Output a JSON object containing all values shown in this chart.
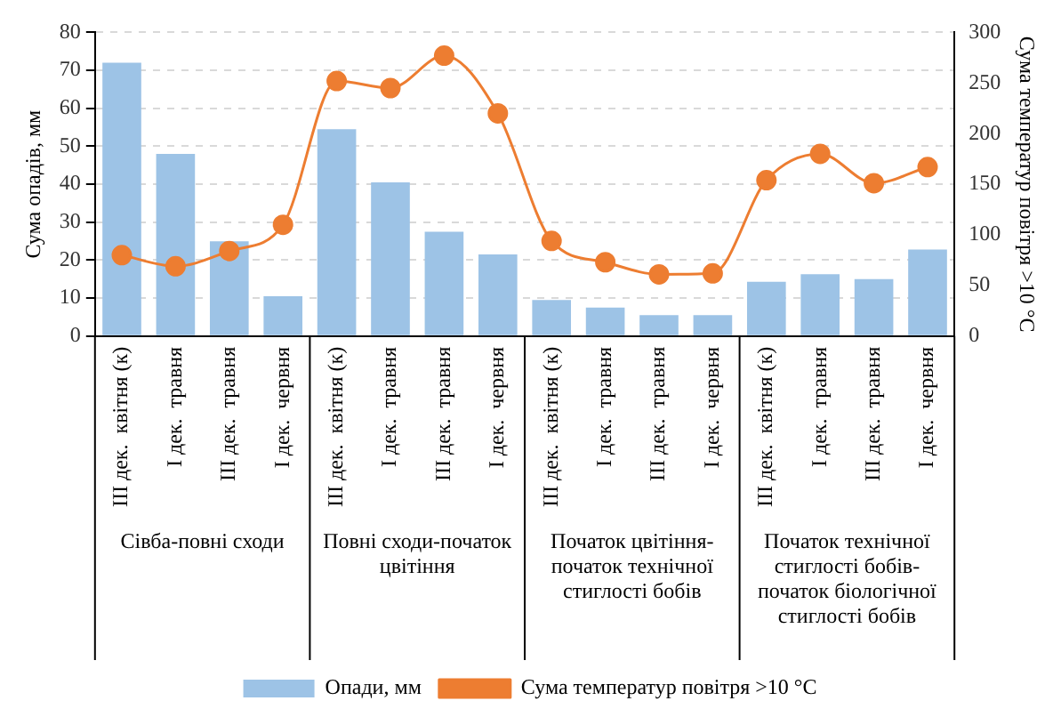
{
  "chart_data": {
    "type": "bar",
    "ylabel": "Сума опадів, мм",
    "y2label": "Сума температур повітря >10 °C",
    "categories": [
      "III дек.  квітня (к)",
      "I дек.  травня",
      "III дек.  травня",
      "I дек.  червня",
      "III дек.  квітня (к)",
      "I дек.  травня",
      "III дек.  травня",
      "I дек.  червня",
      "III дек.  квітня (к)",
      "I дек.  травня",
      "III дек.  травня",
      "I дек.  червня",
      "III дек.  квітня (к)",
      "I дек.  травня",
      "III дек.  травня",
      "I дек.  червня"
    ],
    "series": [
      {
        "name": "Опади, мм",
        "color": "#9dc3e6",
        "values": [
          72,
          48,
          25,
          10.5,
          54.5,
          40.5,
          27.5,
          21.5,
          9.5,
          7.5,
          5.5,
          5.5,
          14.3,
          16.3,
          15,
          22.8
        ]
      },
      {
        "name": "Сума температур повітря >10 °C",
        "type": "line",
        "axis": "y2",
        "color": "#ed7d31",
        "marker": "circle",
        "values": [
          80,
          69,
          84,
          110,
          252,
          245,
          277,
          220,
          94,
          73,
          61,
          62,
          154,
          180,
          151,
          167
        ]
      }
    ],
    "ylim": [
      0,
      80
    ],
    "yticks": [
      0,
      10,
      20,
      30,
      40,
      50,
      60,
      70,
      80
    ],
    "y2lim": [
      0,
      300
    ],
    "y2ticks": [
      0,
      50,
      100,
      150,
      200,
      250,
      300
    ],
    "grid": "y",
    "legend": "bottom",
    "annotations": [
      "Сівба-повні сходи",
      "Повні сходи-початок цвітіння",
      "Початок цвітіння-початок технічної стиглості бобів",
      "Початок технічної стиглості бобів-початок біологічної стиглості бобів"
    ]
  }
}
